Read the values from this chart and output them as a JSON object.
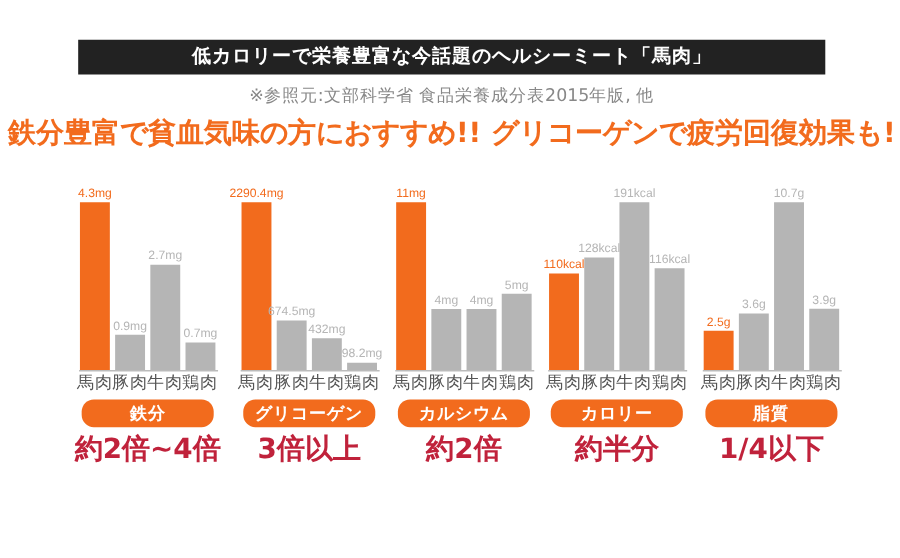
{
  "chart_data": [
    {
      "type": "other",
      "title": "低カロリーで栄養豊富な今話題のヘルシーミート「馬肉」",
      "subtitle": "※参照元:文部科学省 食品栄養成分表2015年版, 他",
      "annotations": [
        "鉄分豊富で貧血気味の方におすすめ!! グリコーゲンで疲労回復効果も!"
      ]
    },
    {
      "type": "bar",
      "xlabel": "鉄分",
      "categories": [
        "馬肉",
        "豚肉",
        "牛肉",
        "鶏肉"
      ],
      "values": [
        4.3,
        0.9,
        2.7,
        0.7
      ],
      "value_labels": [
        "4.3mg",
        "0.9mg",
        "2.7mg",
        "0.7mg"
      ],
      "colors": [
        "#f26b1d",
        "#b5b5b5",
        "#b5b5b5",
        "#b5b5b5"
      ],
      "annotations": [
        "約2倍~4倍"
      ]
    },
    {
      "type": "bar",
      "xlabel": "グリコーゲン",
      "categories": [
        "馬肉",
        "豚肉",
        "牛肉",
        "鶏肉"
      ],
      "values": [
        2290.4,
        674.5,
        432,
        98.2
      ],
      "value_labels": [
        "2290.4mg",
        "674.5mg",
        "432mg",
        "98.2mg"
      ],
      "colors": [
        "#f26b1d",
        "#b5b5b5",
        "#b5b5b5",
        "#b5b5b5"
      ],
      "annotations": [
        "3倍以上"
      ]
    },
    {
      "type": "bar",
      "xlabel": "カルシウム",
      "categories": [
        "馬肉",
        "豚肉",
        "牛肉",
        "鶏肉"
      ],
      "values": [
        11,
        4,
        4,
        5
      ],
      "value_labels": [
        "11mg",
        "4mg",
        "4mg",
        "5mg"
      ],
      "colors": [
        "#f26b1d",
        "#b5b5b5",
        "#b5b5b5",
        "#b5b5b5"
      ],
      "annotations": [
        "約2倍"
      ]
    },
    {
      "type": "bar",
      "xlabel": "カロリー",
      "categories": [
        "馬肉",
        "豚肉",
        "牛肉",
        "鶏肉"
      ],
      "values": [
        110,
        128,
        191,
        116
      ],
      "value_labels": [
        "110kcal",
        "128kcal",
        "191kcal",
        "116kcal"
      ],
      "colors": [
        "#f26b1d",
        "#b5b5b5",
        "#b5b5b5",
        "#b5b5b5"
      ],
      "annotations": [
        "約半分"
      ]
    },
    {
      "type": "bar",
      "xlabel": "脂質",
      "categories": [
        "馬肉",
        "豚肉",
        "牛肉",
        "鶏肉"
      ],
      "values": [
        2.5,
        3.6,
        10.7,
        3.9
      ],
      "value_labels": [
        "2.5g",
        "3.6g",
        "10.7g",
        "3.9g"
      ],
      "colors": [
        "#f26b1d",
        "#b5b5b5",
        "#b5b5b5",
        "#b5b5b5"
      ],
      "annotations": [
        "1/4以下"
      ]
    }
  ]
}
